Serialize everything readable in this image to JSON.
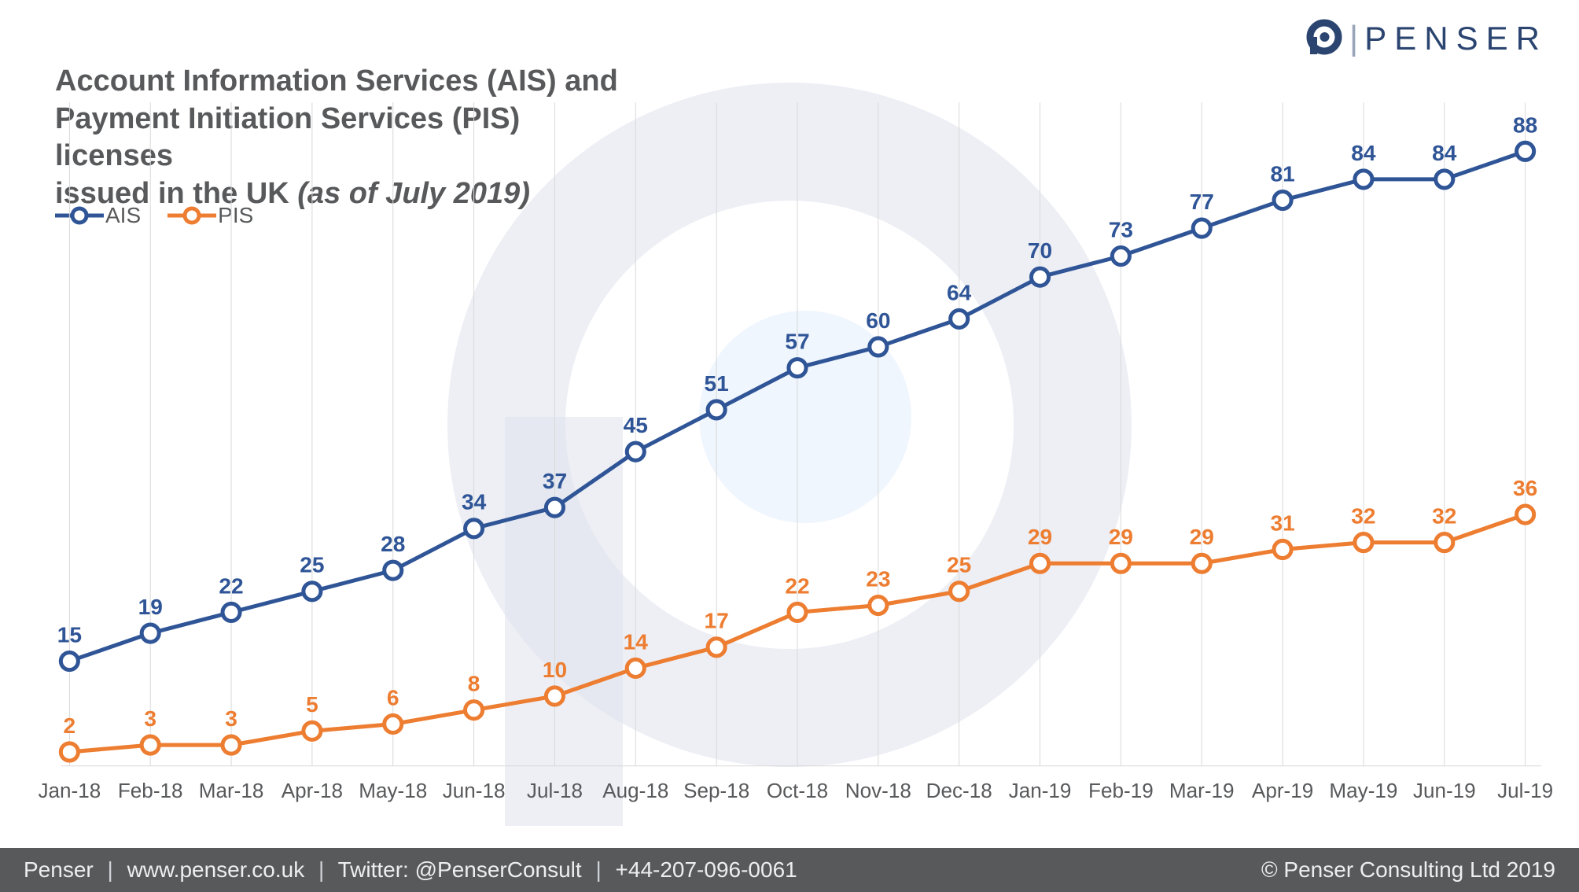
{
  "brand": {
    "name": "PENSER",
    "logo_color": "#2b4570",
    "logo_pipe_color": "#9aa4b8"
  },
  "title_line1": "Account Information Services (AIS) and",
  "title_line2": "Payment Initiation Services (PIS) licenses",
  "title_line3_plain": "issued in the UK ",
  "title_line3_italic": "(as of July 2019)",
  "legend": {
    "ais": "AIS",
    "pis": "PIS"
  },
  "footer": {
    "company": "Penser",
    "url": "www.penser.co.uk",
    "twitter": "Twitter: @PenserConsult",
    "phone": "+44-207-096-0061",
    "copyright": "© Penser Consulting Ltd 2019"
  },
  "chart": {
    "type": "line",
    "background_color": "#ffffff",
    "grid_color": "#d9d9d9",
    "categories": [
      "Jan-18",
      "Feb-18",
      "Mar-18",
      "Apr-18",
      "May-18",
      "Jun-18",
      "Jul-18",
      "Aug-18",
      "Sep-18",
      "Oct-18",
      "Nov-18",
      "Dec-18",
      "Jan-19",
      "Feb-19",
      "Mar-19",
      "Apr-19",
      "May-19",
      "Jun-19",
      "Jul-19"
    ],
    "ylim": [
      0,
      95
    ],
    "label_fontsize": 26,
    "data_label_fontsize": 28,
    "marker_radius": 11,
    "marker_stroke_width": 5,
    "marker_fill": "#ffffff",
    "line_width": 5,
    "glow": {
      "pis_color": "#ffb974",
      "width": 14
    },
    "series": [
      {
        "name": "AIS",
        "color": "#2f5597",
        "values": [
          15,
          19,
          22,
          25,
          28,
          34,
          37,
          45,
          51,
          57,
          60,
          64,
          70,
          73,
          77,
          81,
          84,
          84,
          88
        ]
      },
      {
        "name": "PIS",
        "color": "#ed7d31",
        "values": [
          2,
          3,
          3,
          5,
          6,
          8,
          10,
          14,
          17,
          22,
          23,
          25,
          29,
          29,
          29,
          31,
          32,
          32,
          36
        ]
      }
    ],
    "watermark": {
      "ring_color": "#7d8ab5",
      "inner_color": "#bcd6f5"
    }
  }
}
